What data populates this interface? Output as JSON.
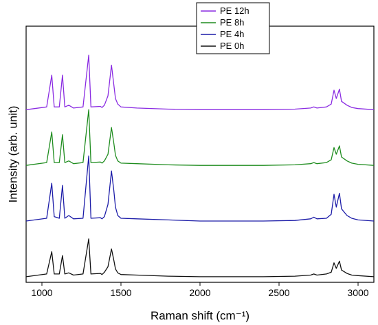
{
  "chart_data": {
    "type": "line",
    "xlabel": "Raman shift (cm⁻¹)",
    "ylabel": "Intensity (arb. unit)",
    "xlim": [
      900,
      3100
    ],
    "xticks": [
      1000,
      1500,
      2000,
      2500,
      3000
    ],
    "yticks_shown": false,
    "grid": false,
    "legend_position": "top-right",
    "series": [
      {
        "name": "PE 12h",
        "color": "#8a2be2",
        "baseline": 3,
        "x": [
          900,
          1030,
          1062,
          1078,
          1110,
          1130,
          1145,
          1170,
          1200,
          1260,
          1296,
          1310,
          1370,
          1380,
          1395,
          1418,
          1440,
          1455,
          1465,
          1480,
          1500,
          1600,
          1800,
          2000,
          2200,
          2400,
          2600,
          2700,
          2720,
          2740,
          2800,
          2830,
          2848,
          2862,
          2882,
          2895,
          2930,
          2960,
          3000,
          3100
        ],
        "values": [
          0.0,
          0.05,
          0.62,
          0.05,
          0.05,
          0.62,
          0.05,
          0.08,
          0.03,
          0.05,
          0.98,
          0.05,
          0.06,
          0.04,
          0.08,
          0.25,
          0.8,
          0.45,
          0.2,
          0.1,
          0.05,
          0.03,
          0.01,
          0.0,
          0.0,
          0.0,
          0.01,
          0.03,
          0.05,
          0.03,
          0.05,
          0.1,
          0.35,
          0.2,
          0.37,
          0.15,
          0.08,
          0.04,
          0.02,
          0.0
        ]
      },
      {
        "name": "PE 8h",
        "color": "#1e8c1e",
        "baseline": 2,
        "x": [
          900,
          1030,
          1062,
          1078,
          1110,
          1130,
          1145,
          1170,
          1200,
          1260,
          1296,
          1310,
          1370,
          1380,
          1395,
          1418,
          1440,
          1455,
          1465,
          1480,
          1500,
          1600,
          1800,
          2000,
          2200,
          2400,
          2600,
          2700,
          2720,
          2740,
          2800,
          2830,
          2848,
          2862,
          2882,
          2895,
          2930,
          2960,
          3000,
          3100
        ],
        "values": [
          0.0,
          0.05,
          0.6,
          0.05,
          0.05,
          0.55,
          0.05,
          0.08,
          0.03,
          0.05,
          1.0,
          0.05,
          0.06,
          0.04,
          0.08,
          0.2,
          0.68,
          0.4,
          0.18,
          0.08,
          0.04,
          0.03,
          0.01,
          0.0,
          0.0,
          0.0,
          0.01,
          0.03,
          0.05,
          0.03,
          0.05,
          0.1,
          0.32,
          0.2,
          0.35,
          0.15,
          0.08,
          0.04,
          0.02,
          0.0
        ]
      },
      {
        "name": "PE 4h",
        "color": "#1c1ca8",
        "baseline": 1,
        "x": [
          900,
          1030,
          1062,
          1078,
          1110,
          1130,
          1145,
          1170,
          1200,
          1260,
          1296,
          1310,
          1370,
          1380,
          1395,
          1418,
          1440,
          1455,
          1465,
          1480,
          1500,
          1600,
          1800,
          2000,
          2200,
          2400,
          2600,
          2700,
          2720,
          2740,
          2800,
          2830,
          2848,
          2862,
          2882,
          2895,
          2930,
          2960,
          3000,
          3100
        ],
        "values": [
          0.0,
          0.05,
          0.68,
          0.08,
          0.05,
          0.64,
          0.05,
          0.1,
          0.04,
          0.05,
          1.17,
          0.05,
          0.06,
          0.04,
          0.08,
          0.3,
          0.9,
          0.55,
          0.25,
          0.1,
          0.05,
          0.04,
          0.02,
          0.0,
          0.0,
          0.0,
          0.01,
          0.04,
          0.07,
          0.04,
          0.05,
          0.12,
          0.48,
          0.25,
          0.5,
          0.22,
          0.1,
          0.05,
          0.02,
          0.0
        ]
      },
      {
        "name": "PE 0h",
        "color": "#111111",
        "baseline": 0,
        "x": [
          900,
          1030,
          1062,
          1078,
          1110,
          1130,
          1145,
          1170,
          1200,
          1260,
          1296,
          1310,
          1370,
          1380,
          1395,
          1418,
          1440,
          1455,
          1465,
          1480,
          1500,
          1600,
          1800,
          2000,
          2200,
          2400,
          2600,
          2700,
          2720,
          2740,
          2800,
          2830,
          2848,
          2862,
          2882,
          2895,
          2930,
          2960,
          3000,
          3100
        ],
        "values": [
          0.0,
          0.05,
          0.45,
          0.05,
          0.05,
          0.38,
          0.05,
          0.07,
          0.03,
          0.05,
          0.68,
          0.05,
          0.06,
          0.04,
          0.08,
          0.18,
          0.5,
          0.3,
          0.14,
          0.07,
          0.04,
          0.03,
          0.01,
          0.0,
          0.0,
          0.0,
          0.01,
          0.03,
          0.05,
          0.03,
          0.05,
          0.08,
          0.25,
          0.15,
          0.28,
          0.12,
          0.06,
          0.03,
          0.02,
          0.0
        ]
      }
    ],
    "ylim": [
      -0.1,
      4.5
    ]
  }
}
